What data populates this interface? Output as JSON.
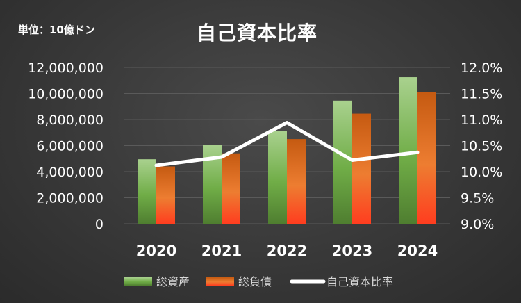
{
  "unit_label": "単位：10億ドン",
  "chart_data": {
    "type": "bar+line",
    "title": "自己資本比率",
    "categories": [
      "2020",
      "2021",
      "2022",
      "2023",
      "2024"
    ],
    "series": [
      {
        "name": "総資産",
        "type": "bar",
        "axis": "left",
        "color": "#6aa84f",
        "values": [
          4950000,
          6050000,
          7100000,
          9450000,
          11250000
        ]
      },
      {
        "name": "総負債",
        "type": "bar",
        "axis": "left",
        "color": "#e46c0a",
        "values": [
          4400000,
          5400000,
          6500000,
          8450000,
          10100000
        ]
      },
      {
        "name": "自己資本比率",
        "type": "line",
        "axis": "right",
        "color": "#ffffff",
        "values": [
          10.12,
          10.28,
          10.94,
          10.22,
          10.37
        ]
      }
    ],
    "y_left": {
      "min": 0,
      "max": 12000000,
      "step": 2000000,
      "tick_labels": [
        "0",
        "2,000,000",
        "4,000,000",
        "6,000,000",
        "8,000,000",
        "10,000,000",
        "12,000,000"
      ]
    },
    "y_right": {
      "min": 9.0,
      "max": 12.0,
      "step": 0.5,
      "tick_labels": [
        "9.0%",
        "9.5%",
        "10.0%",
        "10.5%",
        "11.0%",
        "11.5%",
        "12.0%"
      ]
    },
    "grid": true,
    "legend_position": "bottom"
  }
}
